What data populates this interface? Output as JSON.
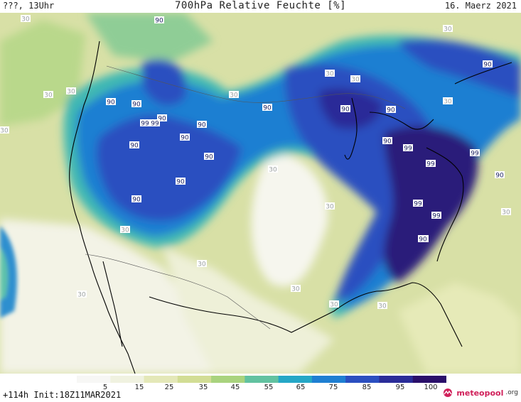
{
  "header": {
    "left": "???, 13Uhr",
    "title": "700hPa Relative Feuchte [%]",
    "date": "16. Maerz 2021"
  },
  "footer": {
    "run_info": "+114h  Init:18Z11MAR2021",
    "logo_name": "meteopool",
    "logo_tld": ".org"
  },
  "legend": {
    "ticks": [
      "5",
      "15",
      "25",
      "35",
      "45",
      "55",
      "65",
      "75",
      "85",
      "95",
      "100"
    ],
    "colors": [
      "#f7f7f5",
      "#f0f2e0",
      "#e4e8b8",
      "#d2dd95",
      "#a9d37e",
      "#62c2a0",
      "#25a7c6",
      "#1f7fd2",
      "#2b4fc0",
      "#2a2c98",
      "#2a0f6a"
    ]
  },
  "map": {
    "region": "Nordamerika",
    "contour_labels": [
      {
        "text": "30"
      },
      {
        "text": "90"
      },
      {
        "text": "30"
      },
      {
        "text": "30"
      },
      {
        "text": "90"
      },
      {
        "text": "30"
      },
      {
        "text": "90"
      },
      {
        "text": "30"
      },
      {
        "text": "90"
      },
      {
        "text": "99"
      },
      {
        "text": "90"
      },
      {
        "text": "90"
      },
      {
        "text": "90"
      },
      {
        "text": "90"
      },
      {
        "text": "90"
      },
      {
        "text": "99"
      },
      {
        "text": "30"
      },
      {
        "text": "90"
      },
      {
        "text": "90"
      },
      {
        "text": "90"
      },
      {
        "text": "99"
      },
      {
        "text": "99"
      },
      {
        "text": "99"
      },
      {
        "text": "90"
      },
      {
        "text": "30"
      },
      {
        "text": "30"
      },
      {
        "text": "99"
      },
      {
        "text": "99"
      },
      {
        "text": "30"
      },
      {
        "text": "90"
      },
      {
        "text": "30"
      },
      {
        "text": "30"
      },
      {
        "text": "30"
      },
      {
        "text": "30"
      },
      {
        "text": "30"
      },
      {
        "text": "30"
      },
      {
        "text": "30"
      },
      {
        "text": "90"
      },
      {
        "text": "30"
      },
      {
        "text": "90"
      },
      {
        "text": "30"
      },
      {
        "text": "90"
      },
      {
        "text": "30"
      }
    ]
  }
}
